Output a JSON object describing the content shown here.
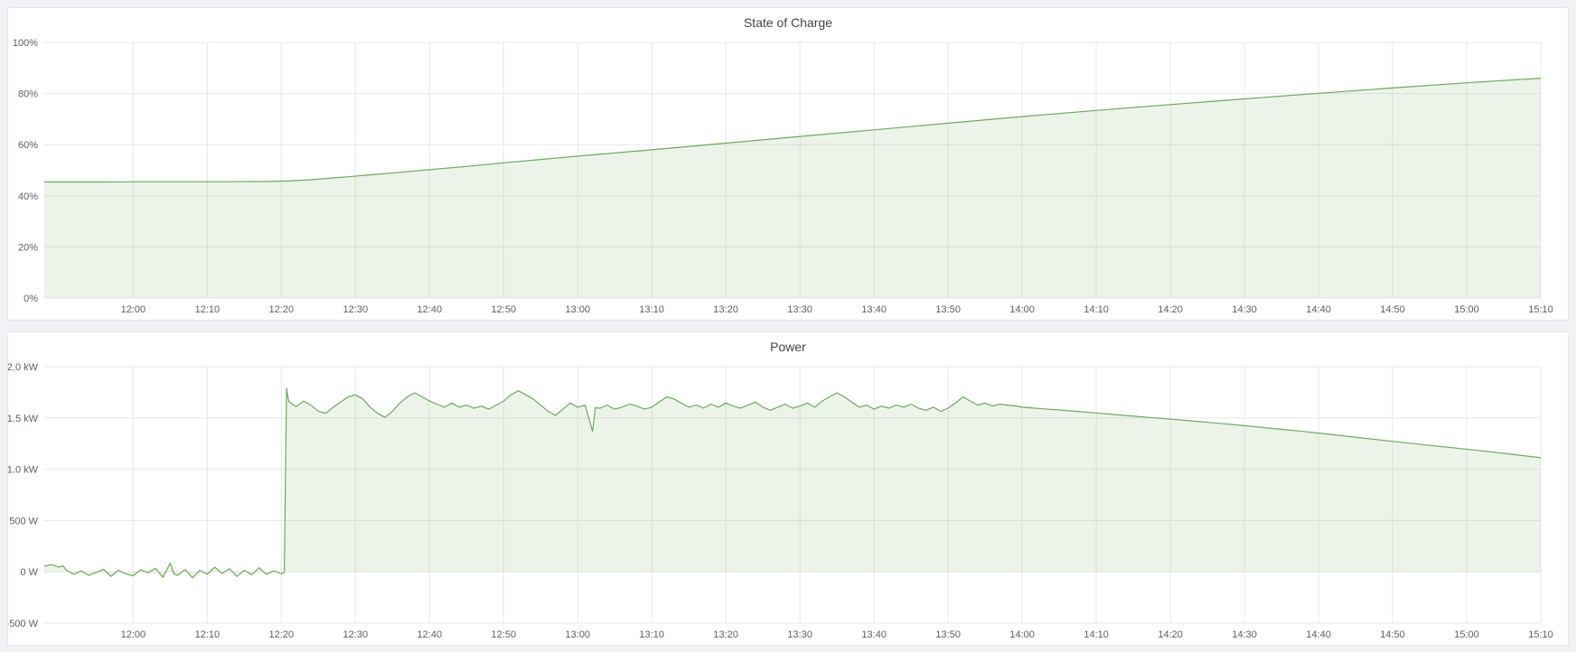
{
  "chart_data": [
    {
      "type": "area",
      "title": "State of Charge",
      "unit": "percent",
      "grid": true,
      "legend": "none",
      "x_domain_minutes": [
        708,
        910
      ],
      "ylim": [
        0,
        100
      ],
      "y_ticks": [
        {
          "v": 0,
          "label": "0%"
        },
        {
          "v": 20,
          "label": "20%"
        },
        {
          "v": 40,
          "label": "40%"
        },
        {
          "v": 60,
          "label": "60%"
        },
        {
          "v": 80,
          "label": "80%"
        },
        {
          "v": 100,
          "label": "100%"
        }
      ],
      "x_ticks": [
        {
          "t": 720,
          "label": "12:00"
        },
        {
          "t": 730,
          "label": "12:10"
        },
        {
          "t": 740,
          "label": "12:20"
        },
        {
          "t": 750,
          "label": "12:30"
        },
        {
          "t": 760,
          "label": "12:40"
        },
        {
          "t": 770,
          "label": "12:50"
        },
        {
          "t": 780,
          "label": "13:00"
        },
        {
          "t": 790,
          "label": "13:10"
        },
        {
          "t": 800,
          "label": "13:20"
        },
        {
          "t": 810,
          "label": "13:30"
        },
        {
          "t": 820,
          "label": "13:40"
        },
        {
          "t": 830,
          "label": "13:50"
        },
        {
          "t": 840,
          "label": "14:00"
        },
        {
          "t": 850,
          "label": "14:10"
        },
        {
          "t": 860,
          "label": "14:20"
        },
        {
          "t": 870,
          "label": "14:30"
        },
        {
          "t": 880,
          "label": "14:40"
        },
        {
          "t": 890,
          "label": "14:50"
        },
        {
          "t": 900,
          "label": "15:00"
        },
        {
          "t": 910,
          "label": "15:10"
        }
      ],
      "series": [
        {
          "name": "State of Charge",
          "color": "#6fa85f",
          "fill_opacity": 0.13,
          "fill_baseline": 0,
          "points": [
            [
              708,
              45.4
            ],
            [
              716,
              45.4
            ],
            [
              724,
              45.5
            ],
            [
              732,
              45.5
            ],
            [
              738,
              45.6
            ],
            [
              741,
              45.8
            ],
            [
              744,
              46.3
            ],
            [
              748,
              47.2
            ],
            [
              752,
              48.2
            ],
            [
              756,
              49.2
            ],
            [
              760,
              50.2
            ],
            [
              765,
              51.5
            ],
            [
              770,
              52.9
            ],
            [
              775,
              54.2
            ],
            [
              780,
              55.5
            ],
            [
              790,
              58.0
            ],
            [
              800,
              60.6
            ],
            [
              810,
              63.2
            ],
            [
              820,
              65.8
            ],
            [
              830,
              68.4
            ],
            [
              840,
              71.0
            ],
            [
              850,
              73.4
            ],
            [
              860,
              75.7
            ],
            [
              870,
              77.9
            ],
            [
              880,
              80.1
            ],
            [
              890,
              82.2
            ],
            [
              900,
              84.2
            ],
            [
              910,
              86.0
            ]
          ]
        }
      ]
    },
    {
      "type": "area",
      "title": "Power",
      "unit": "watt",
      "grid": true,
      "legend": "none",
      "x_domain_minutes": [
        708,
        910
      ],
      "ylim": [
        -500,
        2000
      ],
      "y_ticks": [
        {
          "v": -500,
          "label": "-500 W"
        },
        {
          "v": 0,
          "label": "0 W"
        },
        {
          "v": 500,
          "label": "500 W"
        },
        {
          "v": 1000,
          "label": "1.0 kW"
        },
        {
          "v": 1500,
          "label": "1.5 kW"
        },
        {
          "v": 2000,
          "label": "2.0 kW"
        }
      ],
      "x_ticks": [
        {
          "t": 720,
          "label": "12:00"
        },
        {
          "t": 730,
          "label": "12:10"
        },
        {
          "t": 740,
          "label": "12:20"
        },
        {
          "t": 750,
          "label": "12:30"
        },
        {
          "t": 760,
          "label": "12:40"
        },
        {
          "t": 770,
          "label": "12:50"
        },
        {
          "t": 780,
          "label": "13:00"
        },
        {
          "t": 790,
          "label": "13:10"
        },
        {
          "t": 800,
          "label": "13:20"
        },
        {
          "t": 810,
          "label": "13:30"
        },
        {
          "t": 820,
          "label": "13:40"
        },
        {
          "t": 830,
          "label": "13:50"
        },
        {
          "t": 840,
          "label": "14:00"
        },
        {
          "t": 850,
          "label": "14:10"
        },
        {
          "t": 860,
          "label": "14:20"
        },
        {
          "t": 870,
          "label": "14:30"
        },
        {
          "t": 880,
          "label": "14:40"
        },
        {
          "t": 890,
          "label": "14:50"
        },
        {
          "t": 900,
          "label": "15:00"
        },
        {
          "t": 910,
          "label": "15:10"
        }
      ],
      "series": [
        {
          "name": "Power",
          "color": "#6fa85f",
          "fill_opacity": 0.13,
          "fill_baseline": 0,
          "points": [
            [
              708,
              55
            ],
            [
              709,
              70
            ],
            [
              710,
              45
            ],
            [
              710.5,
              60
            ],
            [
              711,
              15
            ],
            [
              712,
              -25
            ],
            [
              713,
              10
            ],
            [
              714,
              -35
            ],
            [
              715,
              -5
            ],
            [
              716,
              25
            ],
            [
              717,
              -45
            ],
            [
              718,
              15
            ],
            [
              719,
              -20
            ],
            [
              720,
              -40
            ],
            [
              721,
              20
            ],
            [
              722,
              -10
            ],
            [
              723,
              35
            ],
            [
              724,
              -55
            ],
            [
              725,
              85
            ],
            [
              725.5,
              -20
            ],
            [
              726,
              -35
            ],
            [
              727,
              25
            ],
            [
              728,
              -60
            ],
            [
              729,
              15
            ],
            [
              730,
              -25
            ],
            [
              731,
              45
            ],
            [
              732,
              -15
            ],
            [
              733,
              30
            ],
            [
              734,
              -45
            ],
            [
              735,
              15
            ],
            [
              736,
              -30
            ],
            [
              737,
              40
            ],
            [
              738,
              -25
            ],
            [
              739,
              10
            ],
            [
              740,
              -20
            ],
            [
              740.4,
              -5
            ],
            [
              740.7,
              1790
            ],
            [
              741,
              1660
            ],
            [
              742,
              1610
            ],
            [
              743,
              1665
            ],
            [
              744,
              1625
            ],
            [
              745,
              1565
            ],
            [
              746,
              1545
            ],
            [
              747,
              1605
            ],
            [
              748,
              1655
            ],
            [
              749,
              1705
            ],
            [
              750,
              1725
            ],
            [
              751,
              1685
            ],
            [
              752,
              1605
            ],
            [
              753,
              1545
            ],
            [
              754,
              1505
            ],
            [
              755,
              1565
            ],
            [
              756,
              1645
            ],
            [
              757,
              1705
            ],
            [
              758,
              1745
            ],
            [
              759,
              1705
            ],
            [
              760,
              1665
            ],
            [
              761,
              1635
            ],
            [
              762,
              1605
            ],
            [
              763,
              1645
            ],
            [
              764,
              1605
            ],
            [
              765,
              1625
            ],
            [
              766,
              1595
            ],
            [
              767,
              1615
            ],
            [
              768,
              1585
            ],
            [
              769,
              1625
            ],
            [
              770,
              1665
            ],
            [
              771,
              1725
            ],
            [
              772,
              1765
            ],
            [
              773,
              1725
            ],
            [
              774,
              1685
            ],
            [
              775,
              1625
            ],
            [
              776,
              1565
            ],
            [
              777,
              1525
            ],
            [
              778,
              1585
            ],
            [
              779,
              1645
            ],
            [
              780,
              1605
            ],
            [
              781,
              1625
            ],
            [
              782,
              1370
            ],
            [
              782.4,
              1600
            ],
            [
              783,
              1595
            ],
            [
              784,
              1625
            ],
            [
              785,
              1585
            ],
            [
              786,
              1605
            ],
            [
              787,
              1635
            ],
            [
              788,
              1615
            ],
            [
              789,
              1585
            ],
            [
              790,
              1605
            ],
            [
              791,
              1655
            ],
            [
              792,
              1705
            ],
            [
              793,
              1685
            ],
            [
              794,
              1645
            ],
            [
              795,
              1605
            ],
            [
              796,
              1625
            ],
            [
              797,
              1595
            ],
            [
              798,
              1635
            ],
            [
              799,
              1605
            ],
            [
              800,
              1645
            ],
            [
              801,
              1615
            ],
            [
              802,
              1595
            ],
            [
              803,
              1625
            ],
            [
              804,
              1655
            ],
            [
              805,
              1605
            ],
            [
              806,
              1575
            ],
            [
              807,
              1605
            ],
            [
              808,
              1635
            ],
            [
              809,
              1595
            ],
            [
              810,
              1615
            ],
            [
              811,
              1645
            ],
            [
              812,
              1605
            ],
            [
              813,
              1665
            ],
            [
              814,
              1705
            ],
            [
              815,
              1745
            ],
            [
              816,
              1705
            ],
            [
              817,
              1655
            ],
            [
              818,
              1605
            ],
            [
              819,
              1625
            ],
            [
              820,
              1585
            ],
            [
              821,
              1615
            ],
            [
              822,
              1595
            ],
            [
              823,
              1625
            ],
            [
              824,
              1605
            ],
            [
              825,
              1635
            ],
            [
              826,
              1595
            ],
            [
              827,
              1575
            ],
            [
              828,
              1605
            ],
            [
              829,
              1565
            ],
            [
              830,
              1595
            ],
            [
              831,
              1645
            ],
            [
              832,
              1705
            ],
            [
              833,
              1665
            ],
            [
              834,
              1625
            ],
            [
              835,
              1645
            ],
            [
              836,
              1615
            ],
            [
              837,
              1635
            ],
            [
              838,
              1625
            ],
            [
              839,
              1618
            ],
            [
              840,
              1605
            ],
            [
              843,
              1588
            ],
            [
              846,
              1572
            ],
            [
              850,
              1548
            ],
            [
              854,
              1524
            ],
            [
              858,
              1500
            ],
            [
              862,
              1476
            ],
            [
              866,
              1452
            ],
            [
              870,
              1424
            ],
            [
              874,
              1396
            ],
            [
              878,
              1368
            ],
            [
              882,
              1336
            ],
            [
              886,
              1304
            ],
            [
              890,
              1272
            ],
            [
              894,
              1240
            ],
            [
              898,
              1210
            ],
            [
              902,
              1180
            ],
            [
              906,
              1146
            ],
            [
              910,
              1112
            ]
          ]
        }
      ]
    }
  ]
}
